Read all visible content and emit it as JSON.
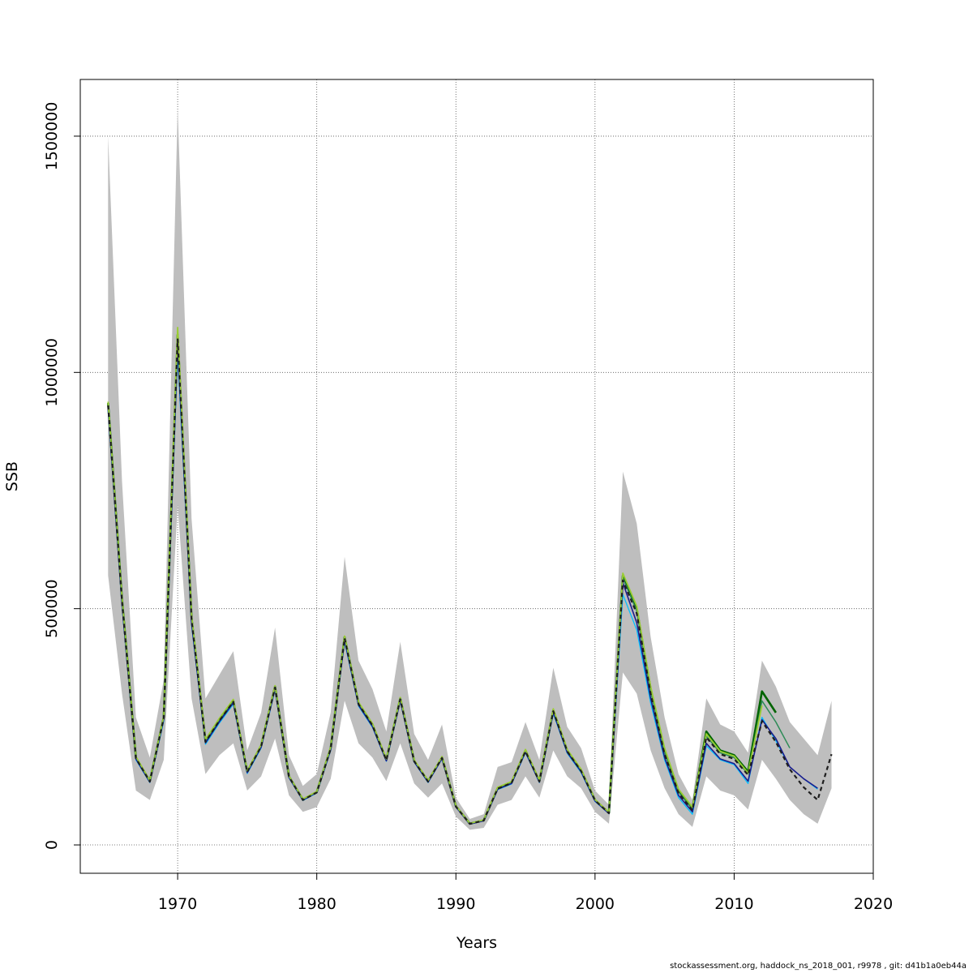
{
  "chart_data": {
    "type": "line",
    "title": "",
    "xlabel": "Years",
    "ylabel": "SSB",
    "xlim": [
      1963,
      2020
    ],
    "ylim": [
      -60000,
      1620000
    ],
    "x_ticks": [
      1970,
      1980,
      1990,
      2000,
      2010,
      2020
    ],
    "x_tick_labels": [
      "1970",
      "1980",
      "1990",
      "2000",
      "2010",
      "2020"
    ],
    "y_ticks": [
      0,
      500000,
      1000000,
      1500000
    ],
    "y_tick_labels": [
      "0",
      "500000",
      "1000000",
      "1500000"
    ],
    "grid": true,
    "confidence_band": {
      "color": "#bebebe",
      "years": [
        1965,
        1966,
        1967,
        1968,
        1969,
        1970,
        1971,
        1972,
        1973,
        1974,
        1975,
        1976,
        1977,
        1978,
        1979,
        1980,
        1981,
        1982,
        1983,
        1984,
        1985,
        1986,
        1987,
        1988,
        1989,
        1990,
        1991,
        1992,
        1993,
        1994,
        1995,
        1996,
        1997,
        1998,
        1999,
        2000,
        2001,
        2002,
        2003,
        2004,
        2005,
        2006,
        2007,
        2008,
        2009,
        2010,
        2011,
        2012,
        2013,
        2014,
        2015,
        2016,
        2017
      ],
      "upper": [
        1500000,
        770000,
        270000,
        185000,
        350000,
        1560000,
        690000,
        310000,
        360000,
        410000,
        200000,
        280000,
        460000,
        190000,
        125000,
        150000,
        280000,
        610000,
        390000,
        330000,
        240000,
        430000,
        235000,
        180000,
        255000,
        100000,
        55000,
        65000,
        165000,
        175000,
        260000,
        180000,
        375000,
        250000,
        205000,
        115000,
        85000,
        790000,
        680000,
        440000,
        270000,
        150000,
        95000,
        310000,
        255000,
        240000,
        195000,
        390000,
        335000,
        260000,
        225000,
        190000,
        305000
      ],
      "lower": [
        570000,
        320000,
        115000,
        95000,
        180000,
        720000,
        310000,
        150000,
        190000,
        215000,
        115000,
        145000,
        225000,
        105000,
        70000,
        80000,
        140000,
        305000,
        215000,
        185000,
        135000,
        215000,
        130000,
        100000,
        130000,
        60000,
        32000,
        36000,
        85000,
        95000,
        145000,
        100000,
        200000,
        145000,
        120000,
        70000,
        45000,
        365000,
        320000,
        200000,
        120000,
        65000,
        38000,
        145000,
        115000,
        105000,
        75000,
        180000,
        140000,
        95000,
        65000,
        45000,
        120000
      ]
    },
    "series": [
      {
        "color": "#006400",
        "width": 2.6,
        "dash": "",
        "x": [
          1965,
          1966,
          1967,
          1968,
          1969,
          1970,
          1971,
          1972,
          1973,
          1974,
          1975,
          1976,
          1977,
          1978,
          1979,
          1980,
          1981,
          1982,
          1983,
          1984,
          1985,
          1986,
          1987,
          1988,
          1989,
          1990,
          1991,
          1992,
          1993,
          1994,
          1995,
          1996,
          1997,
          1998,
          1999,
          2000,
          2001,
          2002,
          2003,
          2004,
          2005,
          2006,
          2007,
          2008,
          2009,
          2010,
          2011,
          2012,
          2013
        ],
        "y": [
          935000,
          520000,
          185000,
          135000,
          270000,
          1080000,
          480000,
          220000,
          265000,
          305000,
          155000,
          210000,
          335000,
          145000,
          96000,
          112000,
          205000,
          440000,
          300000,
          255000,
          180000,
          310000,
          178000,
          135000,
          185000,
          82000,
          45000,
          52000,
          120000,
          132000,
          200000,
          135000,
          285000,
          200000,
          158000,
          95000,
          68000,
          570000,
          500000,
          330000,
          200000,
          115000,
          78000,
          240000,
          200000,
          190000,
          155000,
          325000,
          280000
        ]
      },
      {
        "color": "#2e8b57",
        "width": 1.5,
        "dash": "",
        "x": [
          1965,
          1966,
          1967,
          1968,
          1969,
          1970,
          1971,
          1972,
          1973,
          1974,
          1975,
          1976,
          1977,
          1978,
          1979,
          1980,
          1981,
          1982,
          1983,
          1984,
          1985,
          1986,
          1987,
          1988,
          1989,
          1990,
          1991,
          1992,
          1993,
          1994,
          1995,
          1996,
          1997,
          1998,
          1999,
          2000,
          2001,
          2002,
          2003,
          2004,
          2005,
          2006,
          2007,
          2008,
          2009,
          2010,
          2011,
          2012,
          2013,
          2014
        ],
        "y": [
          930000,
          515000,
          183000,
          134000,
          268000,
          1070000,
          476000,
          218000,
          263000,
          303000,
          154000,
          208000,
          333000,
          144000,
          95000,
          111000,
          203000,
          437000,
          298000,
          253000,
          179000,
          308000,
          177000,
          134000,
          184000,
          81000,
          44500,
          51500,
          119000,
          131000,
          198000,
          134000,
          283000,
          198000,
          156000,
          94000,
          67000,
          565000,
          495000,
          325000,
          196000,
          112000,
          75000,
          230000,
          195000,
          185000,
          150000,
          305000,
          260000,
          205000
        ]
      },
      {
        "color": "#00bfff",
        "width": 1.3,
        "dash": "",
        "x": [
          1965,
          1966,
          1967,
          1968,
          1969,
          1970,
          1971,
          1972,
          1973,
          1974,
          1975,
          1976,
          1977,
          1978,
          1979,
          1980,
          1981,
          1982,
          1983,
          1984,
          1985,
          1986,
          1987,
          1988,
          1989,
          1990,
          1991,
          1992,
          1993,
          1994,
          1995,
          1996,
          1997,
          1998,
          1999,
          2000,
          2001,
          2002,
          2003,
          2004,
          2005,
          2006,
          2007,
          2008,
          2009,
          2010,
          2011,
          2012,
          2013,
          2014,
          2015,
          2016
        ],
        "y": [
          920000,
          505000,
          180000,
          132000,
          262000,
          1040000,
          465000,
          213000,
          258000,
          298000,
          151000,
          205000,
          328000,
          142000,
          94000,
          110000,
          200000,
          430000,
          294000,
          249000,
          177000,
          304000,
          175000,
          132000,
          182000,
          80000,
          44000,
          51000,
          117000,
          129000,
          195000,
          132000,
          278000,
          194000,
          153000,
          92000,
          66000,
          530000,
          455000,
          300000,
          180000,
          100000,
          65000,
          210000,
          180000,
          170000,
          130000,
          270000,
          220000,
          165000,
          140000,
          118000
        ]
      },
      {
        "color": "#1c1c8c",
        "width": 1.6,
        "dash": "",
        "x": [
          1965,
          1966,
          1967,
          1968,
          1969,
          1970,
          1971,
          1972,
          1973,
          1974,
          1975,
          1976,
          1977,
          1978,
          1979,
          1980,
          1981,
          1982,
          1983,
          1984,
          1985,
          1986,
          1987,
          1988,
          1989,
          1990,
          1991,
          1992,
          1993,
          1994,
          1995,
          1996,
          1997,
          1998,
          1999,
          2000,
          2001,
          2002,
          2003,
          2004,
          2005,
          2006,
          2007,
          2008,
          2009,
          2010,
          2011,
          2012,
          2013,
          2014,
          2015,
          2016
        ],
        "y": [
          925000,
          510000,
          182000,
          133000,
          266000,
          1060000,
          470000,
          216000,
          261000,
          301000,
          153000,
          207000,
          331000,
          143000,
          95000,
          111000,
          202000,
          434000,
          296000,
          251000,
          178000,
          306000,
          176000,
          133000,
          183000,
          80500,
          44200,
          51200,
          118000,
          130000,
          197000,
          133000,
          281000,
          196000,
          155000,
          93000,
          66500,
          555000,
          470000,
          310000,
          185000,
          105000,
          70000,
          215000,
          182000,
          172000,
          135000,
          265000,
          225000,
          165000,
          140000,
          120000
        ]
      },
      {
        "color": "#9acd32",
        "width": 1.8,
        "dash": "",
        "x": [
          1965,
          1966,
          1967,
          1968,
          1969,
          1970,
          1971,
          1972,
          1973,
          1974,
          1975,
          1976,
          1977,
          1978,
          1979,
          1980,
          1981,
          1982,
          1983,
          1984,
          1985,
          1986,
          1987,
          1988,
          1989,
          1990,
          1991,
          1992,
          1993,
          1994,
          1995,
          1996,
          1997,
          1998,
          1999,
          2000,
          2001,
          2002,
          2003,
          2004,
          2005,
          2006,
          2007,
          2008,
          2009,
          2010,
          2011,
          2012
        ],
        "y": [
          938000,
          522000,
          187000,
          136000,
          272000,
          1095000,
          485000,
          223000,
          268000,
          308000,
          157000,
          212000,
          337000,
          146000,
          97000,
          113000,
          207000,
          442000,
          302000,
          257000,
          182000,
          312000,
          180000,
          136000,
          187000,
          83000,
          45500,
          53000,
          122000,
          134000,
          202000,
          137000,
          288000,
          202000,
          160000,
          96000,
          69000,
          575000,
          505000,
          335000,
          205000,
          118000,
          80000,
          235000,
          198000,
          188000,
          152000,
          295000
        ]
      },
      {
        "color": "#1e1e1e",
        "width": 2.2,
        "dash": "5,4",
        "x": [
          1965,
          1966,
          1967,
          1968,
          1969,
          1970,
          1971,
          1972,
          1973,
          1974,
          1975,
          1976,
          1977,
          1978,
          1979,
          1980,
          1981,
          1982,
          1983,
          1984,
          1985,
          1986,
          1987,
          1988,
          1989,
          1990,
          1991,
          1992,
          1993,
          1994,
          1995,
          1996,
          1997,
          1998,
          1999,
          2000,
          2001,
          2002,
          2003,
          2004,
          2005,
          2006,
          2007,
          2008,
          2009,
          2010,
          2011,
          2012,
          2013,
          2014,
          2015,
          2016,
          2017
        ],
        "y": [
          930000,
          515000,
          183000,
          134000,
          268000,
          1070000,
          476000,
          218000,
          263000,
          303000,
          154000,
          208000,
          333000,
          144000,
          95000,
          111000,
          203000,
          437000,
          298000,
          253000,
          179000,
          308000,
          177000,
          134000,
          184000,
          81000,
          44500,
          51500,
          119000,
          131000,
          198000,
          134000,
          283000,
          198000,
          156000,
          94000,
          67000,
          560000,
          490000,
          320000,
          192000,
          110000,
          73000,
          228000,
          192000,
          182000,
          148000,
          262000,
          218000,
          160000,
          122000,
          95000,
          192000
        ]
      }
    ]
  },
  "footer": {
    "credit": "stockassessment.org, haddock_ns_2018_001, r9978 , git: d41b1a0eb44a"
  }
}
